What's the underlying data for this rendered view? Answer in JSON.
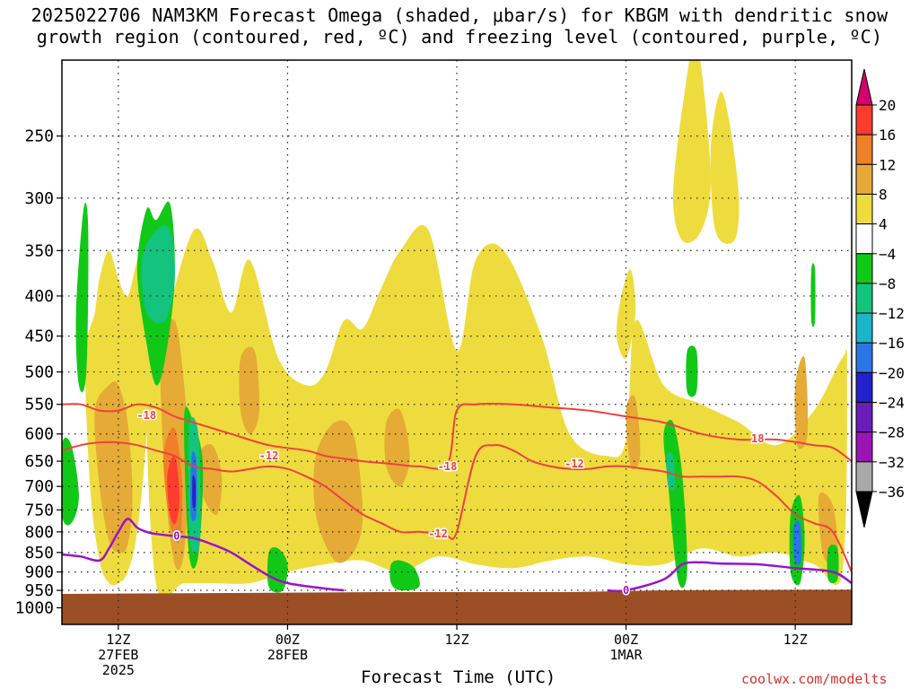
{
  "chart_data": {
    "type": "heatmap",
    "title_line1": "2025022706 NAM3KM Forecast Omega (shaded, μbar/s) for KBGM with dendritic snow",
    "title_line2": "growth region (contoured, red, ºC) and freezing level (contoured, purple, ºC)",
    "xlabel": "Forecast Time (UTC)",
    "credit": "coolwx.com/modelts",
    "y_axis": {
      "quantity": "pressure (mb)",
      "ticks": [
        250,
        300,
        350,
        400,
        450,
        500,
        550,
        600,
        650,
        700,
        750,
        800,
        850,
        900,
        950,
        1000
      ],
      "range": [
        1050,
        200
      ],
      "scale": "log"
    },
    "x_axis": {
      "quantity": "forecast hour",
      "range": [
        6,
        90
      ],
      "ticks": [
        {
          "hour": 12,
          "label": "12Z",
          "date": "27FEB",
          "year": "2025"
        },
        {
          "hour": 30,
          "label": "00Z",
          "date": "28FEB"
        },
        {
          "hour": 48,
          "label": "12Z"
        },
        {
          "hour": 66,
          "label": "00Z",
          "date": "1MAR"
        },
        {
          "hour": 84,
          "label": "12Z"
        }
      ]
    },
    "grid": true,
    "colorbar": {
      "label_values": [
        "20",
        "16",
        "12",
        "8",
        "4",
        "−4",
        "−8",
        "−12",
        "−16",
        "−20",
        "−24",
        "−28",
        "−32",
        "−36"
      ],
      "colors": [
        "#d4006e",
        "#ff3b2e",
        "#f07f29",
        "#e6aa36",
        "#eedc3e",
        "#ffffff",
        "#12c817",
        "#14c37d",
        "#1bb4c9",
        "#2a76e4",
        "#2222cc",
        "#6a1db8",
        "#9a14b4",
        "#a9a9a9",
        "#000000"
      ]
    },
    "omega_regions": [
      {
        "color": "#eedc3e",
        "x_hours": [
          8.5,
          9.5,
          10,
          11,
          12,
          13,
          14,
          15,
          16,
          15,
          14,
          13,
          12,
          11,
          10,
          9
        ],
        "p_mb": [
          480,
          420,
          380,
          350,
          380,
          400,
          360,
          330,
          360,
          600,
          800,
          900,
          930,
          930,
          870,
          700
        ]
      },
      {
        "color": "#eedc3e",
        "x_hours": [
          15,
          17,
          20,
          22,
          24,
          26,
          29,
          32,
          34,
          36,
          38,
          40,
          42,
          45,
          48,
          50,
          53,
          57,
          60,
          64,
          66,
          67,
          70,
          74,
          78,
          82,
          86,
          89,
          89.5,
          89,
          86,
          82,
          78,
          74,
          70,
          66,
          62,
          58,
          54,
          50,
          46,
          42,
          38,
          34,
          30,
          26,
          22,
          19,
          16
        ],
        "p_mb": [
          500,
          430,
          330,
          360,
          420,
          360,
          480,
          520,
          500,
          430,
          440,
          390,
          350,
          330,
          470,
          360,
          350,
          450,
          600,
          640,
          610,
          430,
          520,
          550,
          580,
          620,
          560,
          480,
          500,
          900,
          880,
          850,
          860,
          840,
          880,
          880,
          860,
          870,
          890,
          880,
          860,
          900,
          870,
          880,
          900,
          930,
          930,
          930,
          930
        ]
      },
      {
        "color": "#eedc3e",
        "x_hours": [
          71,
          72,
          73.5,
          75,
          74,
          72
        ],
        "p_mb": [
          300,
          230,
          190,
          280,
          330,
          340
        ]
      },
      {
        "color": "#eedc3e",
        "x_hours": [
          65.5,
          66.5,
          67,
          66,
          65
        ],
        "p_mb": [
          400,
          370,
          420,
          480,
          450
        ]
      },
      {
        "color": "#eedc3e",
        "x_hours": [
          75,
          76,
          77,
          78,
          77.5,
          75.5
        ],
        "p_mb": [
          260,
          220,
          240,
          300,
          340,
          330
        ]
      },
      {
        "color": "#e6aa36",
        "x_hours": [
          9.5,
          11,
          12,
          13,
          13.5,
          13,
          12,
          11,
          10
        ],
        "p_mb": [
          560,
          520,
          520,
          580,
          720,
          830,
          850,
          820,
          700
        ]
      },
      {
        "color": "#e6aa36",
        "x_hours": [
          16.5,
          18,
          19,
          19.5,
          19,
          18,
          17
        ],
        "p_mb": [
          470,
          430,
          520,
          650,
          850,
          880,
          700
        ]
      },
      {
        "color": "#e6aa36",
        "x_hours": [
          20.5,
          22,
          23,
          22.5,
          21
        ],
        "p_mb": [
          640,
          620,
          680,
          760,
          720
        ]
      },
      {
        "color": "#e6aa36",
        "x_hours": [
          25,
          26.5,
          27,
          26,
          25
        ],
        "p_mb": [
          480,
          470,
          560,
          600,
          560
        ]
      },
      {
        "color": "#e6aa36",
        "x_hours": [
          33,
          35,
          37,
          38,
          37,
          35,
          33
        ],
        "p_mb": [
          640,
          580,
          600,
          760,
          850,
          870,
          760
        ]
      },
      {
        "color": "#e6aa36",
        "x_hours": [
          40.5,
          42,
          43,
          42,
          40.5
        ],
        "p_mb": [
          580,
          560,
          640,
          700,
          660
        ]
      },
      {
        "color": "#e6aa36",
        "x_hours": [
          66,
          67,
          67.5,
          66.5
        ],
        "p_mb": [
          560,
          540,
          640,
          660
        ]
      },
      {
        "color": "#e6aa36",
        "x_hours": [
          84,
          85,
          85.3,
          84.2
        ],
        "p_mb": [
          520,
          480,
          600,
          620
        ]
      },
      {
        "color": "#e6aa36",
        "x_hours": [
          86.5,
          88,
          88.5,
          87
        ],
        "p_mb": [
          720,
          740,
          860,
          860
        ]
      },
      {
        "color": "#f07f29",
        "x_hours": [
          16.8,
          18,
          18.8,
          18.5,
          17.5
        ],
        "p_mb": [
          640,
          590,
          700,
          820,
          780
        ]
      },
      {
        "color": "#ff3b2e",
        "x_hours": [
          17.2,
          18,
          18.5,
          18.1,
          17.5
        ],
        "p_mb": [
          680,
          640,
          720,
          780,
          760
        ]
      },
      {
        "color": "#12c817",
        "x_hours": [
          6,
          7,
          7.8,
          7,
          6
        ],
        "p_mb": [
          620,
          620,
          720,
          780,
          760
        ]
      },
      {
        "color": "#12c817",
        "x_hours": [
          7.5,
          8.3,
          8.8,
          8.6,
          7.8
        ],
        "p_mb": [
          420,
          310,
          330,
          500,
          520
        ]
      },
      {
        "color": "#12c817",
        "x_hours": [
          14,
          15,
          16,
          17.5,
          18,
          17,
          16,
          15
        ],
        "p_mb": [
          370,
          310,
          320,
          305,
          380,
          480,
          520,
          460
        ]
      },
      {
        "color": "#14c37d",
        "x_hours": [
          14.5,
          16,
          17.5,
          18,
          17,
          15
        ],
        "p_mb": [
          360,
          330,
          330,
          380,
          430,
          420
        ]
      },
      {
        "color": "#12c817",
        "x_hours": [
          19,
          20,
          21,
          20.5,
          19.5
        ],
        "p_mb": [
          570,
          580,
          660,
          860,
          850
        ]
      },
      {
        "color": "#14c37d",
        "x_hours": [
          19.5,
          20.5,
          20.7,
          19.6
        ],
        "p_mb": [
          590,
          600,
          820,
          820
        ]
      },
      {
        "color": "#2a76e4",
        "x_hours": [
          19.8,
          20.3,
          20.3,
          19.7
        ],
        "p_mb": [
          640,
          650,
          760,
          760
        ]
      },
      {
        "color": "#2222cc",
        "x_hours": [
          19.9,
          20.2,
          20.2,
          19.9
        ],
        "p_mb": [
          680,
          690,
          740,
          740
        ]
      },
      {
        "color": "#12c817",
        "x_hours": [
          28,
          29,
          30,
          29.5,
          28
        ],
        "p_mb": [
          850,
          840,
          880,
          950,
          940
        ]
      },
      {
        "color": "#12c817",
        "x_hours": [
          41,
          42,
          43.5,
          44,
          42,
          41
        ],
        "p_mb": [
          880,
          870,
          890,
          940,
          950,
          930
        ]
      },
      {
        "color": "#12c817",
        "x_hours": [
          70,
          71,
          72,
          72.5,
          71.5,
          70.5
        ],
        "p_mb": [
          600,
          580,
          680,
          900,
          920,
          700
        ]
      },
      {
        "color": "#14c37d",
        "x_hours": [
          70.3,
          71,
          71.2,
          70.5
        ],
        "p_mb": [
          640,
          640,
          700,
          700
        ]
      },
      {
        "color": "#12c817",
        "x_hours": [
          83.5,
          84.5,
          85,
          84.5,
          83.5
        ],
        "p_mb": [
          760,
          720,
          820,
          930,
          900
        ]
      },
      {
        "color": "#2a76e4",
        "x_hours": [
          83.8,
          84.5,
          84.6,
          83.9
        ],
        "p_mb": [
          790,
          780,
          870,
          870
        ]
      },
      {
        "color": "#12c817",
        "x_hours": [
          87.5,
          88.5,
          88.5,
          87.5
        ],
        "p_mb": [
          840,
          840,
          920,
          920
        ]
      },
      {
        "color": "#12c817",
        "x_hours": [
          72.5,
          73.5,
          73.5,
          72.5
        ],
        "p_mb": [
          470,
          470,
          530,
          530
        ]
      },
      {
        "color": "#12c817",
        "x_hours": [
          85.7,
          86.1,
          86.1,
          85.7
        ],
        "p_mb": [
          370,
          370,
          430,
          430
        ]
      }
    ],
    "red_contours": [
      {
        "label": "-18",
        "label_hour": 15,
        "label_p": 570,
        "x_hours": [
          6,
          8,
          10,
          12,
          14,
          16,
          18,
          20,
          24,
          28,
          32,
          34,
          36,
          38,
          41,
          44,
          47,
          48,
          50,
          54,
          58,
          62,
          66,
          70,
          74,
          78,
          82,
          86,
          88,
          90
        ],
        "p_mb": [
          550,
          550,
          560,
          560,
          550,
          555,
          570,
          580,
          600,
          620,
          630,
          640,
          645,
          650,
          655,
          660,
          655,
          560,
          550,
          550,
          555,
          560,
          570,
          580,
          600,
          610,
          610,
          620,
          625,
          650
        ]
      },
      {
        "label": "-12",
        "label_hour": 28,
        "label_p": 640,
        "x_hours": [
          6,
          8,
          10,
          12,
          14,
          16,
          18,
          20,
          22,
          24,
          26,
          28,
          30,
          32,
          34,
          36,
          38,
          40,
          42,
          44,
          46,
          47,
          48,
          50,
          52,
          54,
          56,
          58,
          60,
          62,
          64,
          66,
          68,
          70,
          72,
          74,
          76,
          78,
          80,
          82,
          84,
          86,
          88,
          90
        ],
        "p_mb": [
          630,
          620,
          615,
          615,
          620,
          630,
          640,
          660,
          665,
          670,
          665,
          660,
          665,
          680,
          700,
          730,
          760,
          780,
          800,
          800,
          805,
          810,
          800,
          640,
          620,
          630,
          650,
          660,
          665,
          665,
          660,
          660,
          665,
          670,
          680,
          680,
          680,
          680,
          690,
          720,
          760,
          780,
          800,
          900
        ]
      }
    ],
    "purple_contours": [
      {
        "label": "0",
        "label_hour": 18.2,
        "label_p": 810,
        "x_hours": [
          6,
          8,
          10,
          11,
          12,
          13,
          14,
          15,
          16,
          18,
          20,
          24,
          26,
          28,
          30,
          34,
          36
        ]
      },
      {
        "label": "0",
        "label_hour": 66,
        "label_p": 950,
        "x_hours": [
          64,
          66,
          70,
          72,
          74,
          76,
          80,
          84,
          88,
          90
        ]
      }
    ],
    "annotations": [
      "-18",
      "-12",
      "-18",
      "-12",
      "-12",
      "18",
      "0",
      "0"
    ]
  }
}
